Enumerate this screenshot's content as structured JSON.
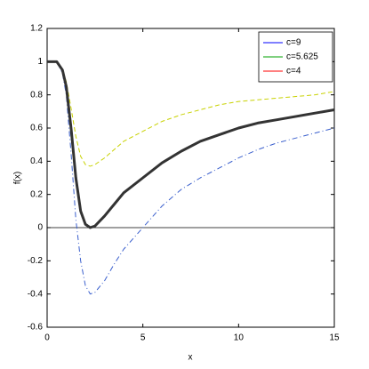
{
  "chart_data": {
    "type": "line",
    "xlabel": "x",
    "ylabel": "f(x)",
    "xlim": [
      0,
      15
    ],
    "ylim": [
      -0.6,
      1.2
    ],
    "xticks": [
      0,
      5,
      10,
      15
    ],
    "yticks": [
      -0.6,
      -0.4,
      -0.2,
      0,
      0.2,
      0.4,
      0.6,
      0.8,
      1,
      1.2
    ],
    "hlines": [
      0
    ],
    "legend_position": "upper-right",
    "x": [
      0,
      0.5,
      0.8,
      1,
      1.25,
      1.5,
      1.75,
      2,
      2.25,
      2.5,
      3,
      3.5,
      4,
      5,
      6,
      7,
      8,
      9,
      10,
      11,
      12,
      13,
      14,
      15
    ],
    "series": [
      {
        "name": "c=9",
        "color": "#0000ff",
        "line_color": "#3a5fcd",
        "dash": "6,3,1,3",
        "width": 1,
        "values": [
          1,
          1,
          0.93,
          0.8,
          0.45,
          0.05,
          -0.2,
          -0.35,
          -0.4,
          -0.39,
          -0.32,
          -0.22,
          -0.13,
          0,
          0.13,
          0.23,
          0.3,
          0.36,
          0.42,
          0.47,
          0.51,
          0.54,
          0.57,
          0.6
        ]
      },
      {
        "name": "c=5.625",
        "color": "#00a000",
        "line_color": "#c8d200",
        "dash": "5,3",
        "width": 1,
        "values": [
          1,
          1,
          0.95,
          0.88,
          0.72,
          0.55,
          0.43,
          0.38,
          0.37,
          0.38,
          0.42,
          0.47,
          0.52,
          0.58,
          0.64,
          0.68,
          0.71,
          0.74,
          0.76,
          0.77,
          0.78,
          0.79,
          0.8,
          0.82
        ]
      },
      {
        "name": "c=4",
        "color": "#ff0000",
        "line_color": "#333333",
        "dash": "none",
        "width": 3,
        "values": [
          1,
          1,
          0.95,
          0.85,
          0.6,
          0.3,
          0.1,
          0.02,
          0,
          0.01,
          0.07,
          0.14,
          0.21,
          0.3,
          0.39,
          0.46,
          0.52,
          0.56,
          0.6,
          0.63,
          0.65,
          0.67,
          0.69,
          0.71
        ]
      }
    ]
  }
}
